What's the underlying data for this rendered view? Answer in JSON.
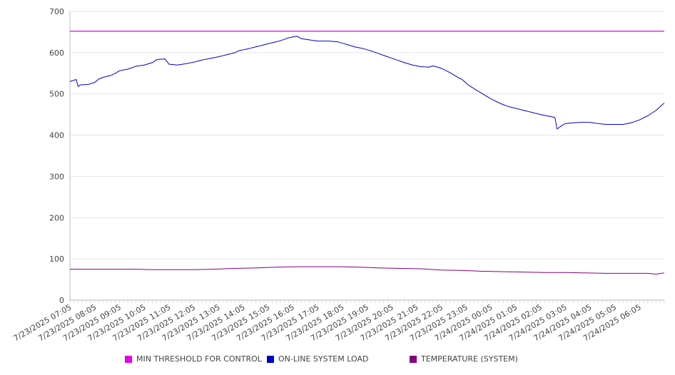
{
  "chart_data": {
    "type": "line",
    "title": "",
    "xlabel": "",
    "ylabel": "",
    "ylim": [
      0,
      700
    ],
    "y_ticks": [
      0,
      100,
      200,
      300,
      400,
      500,
      600,
      700
    ],
    "grid": true,
    "legend_position": "bottom",
    "x_start": "7/23/2025 07:05",
    "x_interval_minutes": 5,
    "x_tick_labels": [
      "7/23/2025 07:05",
      "7/23/2025 08:05",
      "7/23/2025 09:05",
      "7/23/2025 10:05",
      "7/23/2025 11:05",
      "7/23/2025 12:05",
      "7/23/2025 13:05",
      "7/23/2025 14:05",
      "7/23/2025 15:05",
      "7/23/2025 16:05",
      "7/23/2025 17:05",
      "7/23/2025 18:05",
      "7/23/2025 19:05",
      "7/23/2025 20:05",
      "7/23/2025 21:05",
      "7/23/2025 22:05",
      "7/23/2025 23:05",
      "7/24/2025 00:05",
      "7/24/2025 01:05",
      "7/24/2025 02:05",
      "7/24/2025 03:05",
      "7/24/2025 04:05",
      "7/24/2025 05:05",
      "7/24/2025 06:05"
    ],
    "series": [
      {
        "name": "MIN THRESHOLD FOR CONTROL",
        "color": "#e600e6",
        "keypoints": [
          [
            0,
            652
          ],
          [
            288,
            652
          ]
        ]
      },
      {
        "name": "ON-LINE SYSTEM LOAD",
        "color": "#0000cc",
        "keypoints": [
          [
            0,
            530
          ],
          [
            3,
            535
          ],
          [
            4,
            518
          ],
          [
            5,
            522
          ],
          [
            9,
            523
          ],
          [
            12,
            528
          ],
          [
            14,
            536
          ],
          [
            16,
            540
          ],
          [
            20,
            545
          ],
          [
            22,
            550
          ],
          [
            24,
            556
          ],
          [
            28,
            560
          ],
          [
            32,
            567
          ],
          [
            36,
            570
          ],
          [
            40,
            576
          ],
          [
            42,
            583
          ],
          [
            46,
            585
          ],
          [
            48,
            572
          ],
          [
            52,
            570
          ],
          [
            56,
            573
          ],
          [
            60,
            577
          ],
          [
            64,
            582
          ],
          [
            68,
            586
          ],
          [
            72,
            590
          ],
          [
            76,
            595
          ],
          [
            80,
            600
          ],
          [
            82,
            605
          ],
          [
            86,
            609
          ],
          [
            90,
            614
          ],
          [
            94,
            619
          ],
          [
            98,
            624
          ],
          [
            102,
            629
          ],
          [
            106,
            636
          ],
          [
            110,
            640
          ],
          [
            112,
            634
          ],
          [
            116,
            631
          ],
          [
            120,
            628
          ],
          [
            126,
            628
          ],
          [
            130,
            626
          ],
          [
            134,
            620
          ],
          [
            138,
            614
          ],
          [
            142,
            610
          ],
          [
            146,
            604
          ],
          [
            150,
            597
          ],
          [
            154,
            590
          ],
          [
            158,
            583
          ],
          [
            162,
            576
          ],
          [
            166,
            570
          ],
          [
            170,
            566
          ],
          [
            174,
            565
          ],
          [
            176,
            568
          ],
          [
            180,
            562
          ],
          [
            184,
            552
          ],
          [
            188,
            540
          ],
          [
            190,
            535
          ],
          [
            193,
            522
          ],
          [
            196,
            512
          ],
          [
            200,
            500
          ],
          [
            204,
            488
          ],
          [
            208,
            478
          ],
          [
            212,
            470
          ],
          [
            216,
            465
          ],
          [
            220,
            460
          ],
          [
            224,
            455
          ],
          [
            228,
            450
          ],
          [
            232,
            446
          ],
          [
            235,
            443
          ],
          [
            236,
            415
          ],
          [
            238,
            422
          ],
          [
            240,
            428
          ],
          [
            244,
            430
          ],
          [
            248,
            431
          ],
          [
            252,
            431
          ],
          [
            256,
            428
          ],
          [
            260,
            426
          ],
          [
            264,
            426
          ],
          [
            268,
            426
          ],
          [
            272,
            430
          ],
          [
            276,
            437
          ],
          [
            280,
            447
          ],
          [
            284,
            460
          ],
          [
            288,
            478
          ]
        ]
      },
      {
        "name": "TEMPERATURE (SYSTEM)",
        "color": "#800080",
        "keypoints": [
          [
            0,
            75
          ],
          [
            30,
            75
          ],
          [
            40,
            74
          ],
          [
            60,
            74
          ],
          [
            70,
            75
          ],
          [
            80,
            77
          ],
          [
            90,
            78
          ],
          [
            100,
            80
          ],
          [
            110,
            81
          ],
          [
            120,
            81
          ],
          [
            130,
            81
          ],
          [
            140,
            80
          ],
          [
            150,
            78
          ],
          [
            160,
            77
          ],
          [
            170,
            76
          ],
          [
            180,
            73
          ],
          [
            190,
            72
          ],
          [
            200,
            70
          ],
          [
            210,
            69
          ],
          [
            220,
            68
          ],
          [
            230,
            67
          ],
          [
            240,
            67
          ],
          [
            250,
            66
          ],
          [
            260,
            65
          ],
          [
            270,
            65
          ],
          [
            280,
            65
          ],
          [
            284,
            63
          ],
          [
            288,
            66
          ]
        ]
      }
    ]
  }
}
